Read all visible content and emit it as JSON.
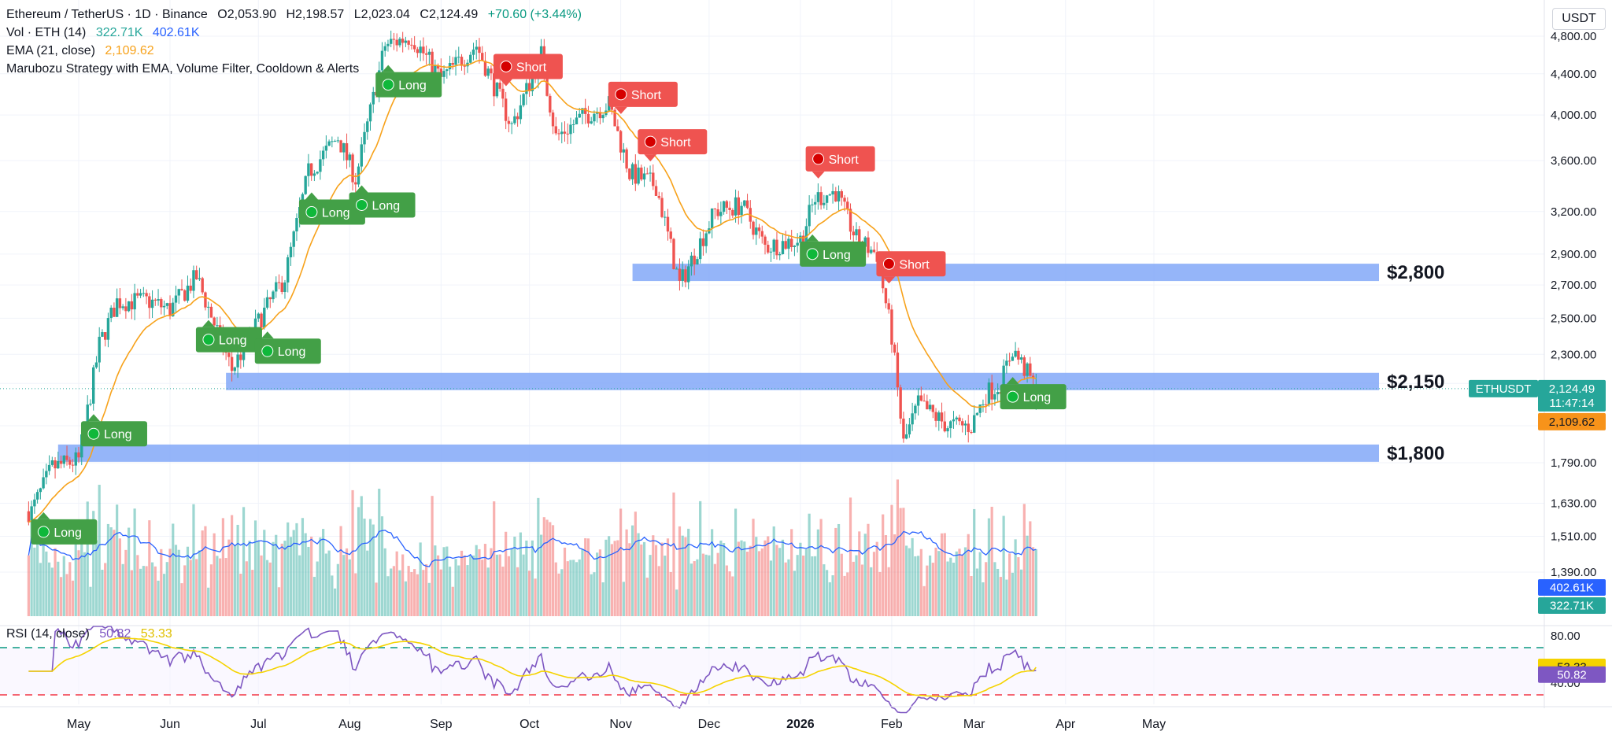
{
  "header": {
    "symbol": "Ethereum / TetherUS · 1D · Binance",
    "open": "O2,053.90",
    "high": "H2,198.57",
    "low": "L2,023.04",
    "close": "C2,124.49",
    "change": "+70.60 (+3.44%)",
    "vol_label": "Vol · ETH (14)",
    "vol_val1": "322.71K",
    "vol_val2": "402.61K",
    "ema_label": "EMA (21, close)",
    "ema_val": "2,109.62",
    "strategy_label": "Marubozu Strategy with EMA, Volume Filter, Cooldown & Alerts",
    "rsi_label": "RSI (14, close)",
    "rsi_val1": "50.82",
    "rsi_val2": "53.33"
  },
  "currency_button": "USDT",
  "colors": {
    "up": "#26a69a",
    "down": "#ef5350",
    "ema": "#f7a21b",
    "volma": "#2962ff",
    "zone": "#82a8f8",
    "rsi": "#7e57c2",
    "rsima": "#f5d300",
    "long_bg": "#43a047",
    "short_bg": "#ef5350"
  },
  "chart_data": {
    "type": "candlestick",
    "price_axis": {
      "ticks": [
        4800,
        4400,
        4000,
        3600,
        3200,
        2900,
        2700,
        2500,
        2300,
        2150,
        1950,
        1790,
        1630,
        1510,
        1390
      ],
      "tick_labels": [
        "4,800.00",
        "4,400.00",
        "4,000.00",
        "3,600.00",
        "3,200.00",
        "2,900.00",
        "2,700.00",
        "2,500.00",
        "2,300.00",
        "",
        "",
        "1,790.00",
        "1,630.00",
        "1,510.00",
        "1,390.00"
      ],
      "scale": "log"
    },
    "time_axis": [
      "May",
      "Jun",
      "Jul",
      "Aug",
      "Sep",
      "Oct",
      "Nov",
      "Dec",
      "2026",
      "Feb",
      "Mar",
      "Apr",
      "May"
    ],
    "price_path": [
      [
        "2025-04-15",
        1600
      ],
      [
        "2025-04-22",
        1770
      ],
      [
        "2025-05-01",
        1800
      ],
      [
        "2025-05-08",
        2350
      ],
      [
        "2025-05-14",
        2600
      ],
      [
        "2025-05-25",
        2600
      ],
      [
        "2025-06-01",
        2550
      ],
      [
        "2025-06-10",
        2750
      ],
      [
        "2025-06-14",
        2560
      ],
      [
        "2025-06-22",
        2220
      ],
      [
        "2025-07-01",
        2480
      ],
      [
        "2025-07-10",
        2750
      ],
      [
        "2025-07-18",
        3500
      ],
      [
        "2025-07-28",
        3800
      ],
      [
        "2025-08-03",
        3450
      ],
      [
        "2025-08-13",
        4700
      ],
      [
        "2025-08-22",
        4800
      ],
      [
        "2025-09-01",
        4350
      ],
      [
        "2025-09-13",
        4700
      ],
      [
        "2025-09-25",
        3900
      ],
      [
        "2025-10-05",
        4600
      ],
      [
        "2025-10-10",
        3800
      ],
      [
        "2025-10-20",
        4000
      ],
      [
        "2025-10-28",
        4100
      ],
      [
        "2025-11-04",
        3500
      ],
      [
        "2025-11-13",
        3400
      ],
      [
        "2025-11-21",
        2700
      ],
      [
        "2025-12-03",
        3200
      ],
      [
        "2025-12-12",
        3250
      ],
      [
        "2025-12-20",
        2950
      ],
      [
        "2026-01-01",
        3000
      ],
      [
        "2026-01-06",
        3300
      ],
      [
        "2026-01-13",
        3350
      ],
      [
        "2026-01-20",
        3000
      ],
      [
        "2026-01-27",
        2900
      ],
      [
        "2026-02-01",
        2400
      ],
      [
        "2026-02-05",
        1870
      ],
      [
        "2026-02-10",
        2050
      ],
      [
        "2026-02-20",
        1950
      ],
      [
        "2026-02-28",
        1950
      ],
      [
        "2026-03-05",
        2100
      ],
      [
        "2026-03-10",
        2150
      ],
      [
        "2026-03-14",
        2330
      ],
      [
        "2026-03-22",
        2124.49
      ]
    ],
    "last_price": 2124.49,
    "ema_last": 2109.62,
    "ohlc_last": {
      "open": 2053.9,
      "high": 2198.57,
      "low": 2023.04,
      "close": 2124.49
    },
    "volume": {
      "last": "322.71K",
      "ma": "402.61K"
    },
    "zones": [
      {
        "label": "$2,800",
        "price": 2780
      },
      {
        "label": "$2,150",
        "price": 2160
      },
      {
        "label": "$1,800",
        "price": 1830
      }
    ],
    "signals": [
      {
        "type": "Long",
        "date": "2025-04-18"
      },
      {
        "type": "Long",
        "date": "2025-05-05"
      },
      {
        "type": "Long",
        "date": "2025-06-13"
      },
      {
        "type": "Long",
        "date": "2025-07-03"
      },
      {
        "type": "Long",
        "date": "2025-07-18"
      },
      {
        "type": "Long",
        "date": "2025-08-04"
      },
      {
        "type": "Long",
        "date": "2025-08-13"
      },
      {
        "type": "Short",
        "date": "2025-09-22"
      },
      {
        "type": "Short",
        "date": "2025-10-31"
      },
      {
        "type": "Short",
        "date": "2025-11-10"
      },
      {
        "type": "Long",
        "date": "2026-01-04"
      },
      {
        "type": "Short",
        "date": "2026-01-06"
      },
      {
        "type": "Short",
        "date": "2026-01-30"
      },
      {
        "type": "Long",
        "date": "2026-03-13"
      }
    ],
    "rsi": {
      "value": 50.82,
      "ma": 53.33,
      "upper": 70,
      "lower": 30,
      "axis_labels": [
        "80.00",
        "40.00"
      ]
    },
    "price_badges": {
      "symbol": "ETHUSDT",
      "price": "2,124.49",
      "countdown": "11:47:14",
      "ema": "2,109.62",
      "vol_ma": "402.61K",
      "vol": "322.71K"
    }
  }
}
